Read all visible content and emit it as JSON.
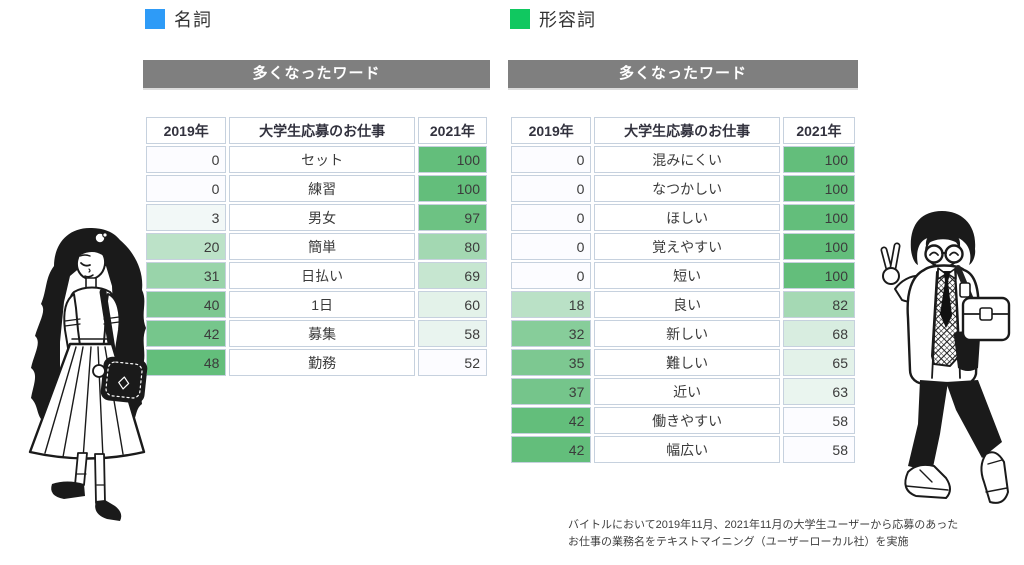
{
  "legend": [
    {
      "label": "名詞",
      "color": "#2e9bf7"
    },
    {
      "label": "形容詞",
      "color": "#10c860"
    }
  ],
  "banners": [
    "多くなったワード",
    "多くなったワード"
  ],
  "chart_data": [
    {
      "type": "table",
      "title": "名詞 多くなったワード",
      "columns": [
        "2019年",
        "大学生応募のお仕事",
        "2021年"
      ],
      "rows": [
        [
          0,
          "セット",
          100
        ],
        [
          0,
          "練習",
          100
        ],
        [
          3,
          "男女",
          97
        ],
        [
          20,
          "簡単",
          80
        ],
        [
          31,
          "日払い",
          69
        ],
        [
          40,
          "1日",
          60
        ],
        [
          42,
          "募集",
          58
        ],
        [
          48,
          "勤務",
          52
        ]
      ],
      "value_range": [
        0,
        100
      ],
      "shading": "green color scale per column, min=white max=green"
    },
    {
      "type": "table",
      "title": "形容詞 多くなったワード",
      "columns": [
        "2019年",
        "大学生応募のお仕事",
        "2021年"
      ],
      "rows": [
        [
          0,
          "混みにくい",
          100
        ],
        [
          0,
          "なつかしい",
          100
        ],
        [
          0,
          "ほしい",
          100
        ],
        [
          0,
          "覚えやすい",
          100
        ],
        [
          0,
          "短い",
          100
        ],
        [
          18,
          "良い",
          82
        ],
        [
          32,
          "新しい",
          68
        ],
        [
          35,
          "難しい",
          65
        ],
        [
          37,
          "近い",
          63
        ],
        [
          42,
          "働きやすい",
          58
        ],
        [
          42,
          "幅広い",
          58
        ]
      ],
      "value_range": [
        0,
        100
      ],
      "shading": "green color scale per column, min=white max=green"
    }
  ],
  "colors": {
    "noun_legend": "#2e9bf7",
    "adjective_legend": "#10c860",
    "banner_bg": "#7f7f7f",
    "banner_text": "#ffffff",
    "scale_min": "#fcfcff",
    "scale_max": "#63be7b",
    "cell_border": "#c6d1de",
    "text_dark": "#3b3b3b"
  },
  "footnote": [
    "バイトルにおいて2019年11月、2021年11月の大学生ユーザーから応募のあった",
    "お仕事の業務名をテキストマイニング（ユーザーローカル社）を実施"
  ],
  "illustrations": [
    {
      "name": "woman-long-hair-shoulder-bag"
    },
    {
      "name": "man-glasses-peace-sign-bag"
    }
  ]
}
